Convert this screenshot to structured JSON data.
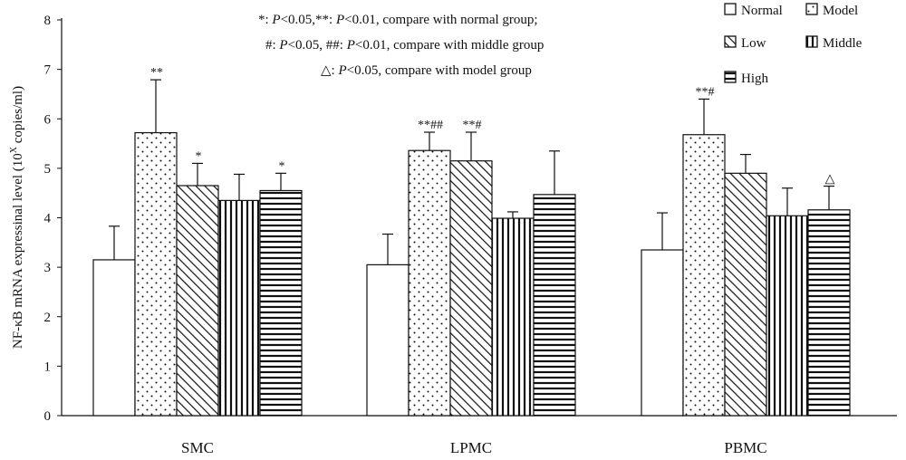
{
  "chart_data": {
    "type": "bar",
    "ylabel": "NF-κB mRNA expressinal level (10^X copies/ml)",
    "ylabel_parts": {
      "before": "NF-κB mRNA expressinal level (10",
      "sup": "X",
      "after": " copies/ml)"
    },
    "ylim": [
      0,
      8
    ],
    "yticks": [
      "0",
      "1",
      "2",
      "3",
      "4",
      "5",
      "6",
      "7",
      "8"
    ],
    "categories": [
      "SMC",
      "LPMC",
      "PBMC"
    ],
    "series": [
      {
        "name": "Normal",
        "pattern": "white",
        "values": [
          3.15,
          3.05,
          3.35
        ],
        "errors": [
          0.68,
          0.62,
          0.75
        ],
        "sig": [
          "",
          "",
          ""
        ]
      },
      {
        "name": "Model",
        "pattern": "dots",
        "values": [
          5.72,
          5.36,
          5.68
        ],
        "errors": [
          1.07,
          0.37,
          0.72
        ],
        "sig": [
          "**",
          "**##",
          "**#"
        ]
      },
      {
        "name": "Low",
        "pattern": "diagonal",
        "values": [
          4.65,
          5.15,
          4.9
        ],
        "errors": [
          0.45,
          0.58,
          0.38
        ],
        "sig": [
          "*",
          "**#",
          ""
        ]
      },
      {
        "name": "Middle",
        "pattern": "vertical",
        "values": [
          4.35,
          3.99,
          4.04
        ],
        "errors": [
          0.53,
          0.13,
          0.56
        ],
        "sig": [
          "",
          "",
          ""
        ]
      },
      {
        "name": "High",
        "pattern": "horizontal",
        "values": [
          4.55,
          4.47,
          4.16
        ],
        "errors": [
          0.35,
          0.88,
          0.48
        ],
        "sig": [
          "*",
          "",
          "△"
        ]
      }
    ],
    "annotations": [
      {
        "symbol": "*: ",
        "p1": "P",
        "t1": "<0.05,**: ",
        "p2": "P",
        "t2": "<0.01, compare with normal group;"
      },
      {
        "symbol": "#: ",
        "p1": "P",
        "t1": "<0.05, ##: ",
        "p2": "P",
        "t2": "<0.01, compare with middle group"
      },
      {
        "symbol": "△: ",
        "p1": "P",
        "t1": "<0.05, compare with model group",
        "p2": "",
        "t2": ""
      }
    ],
    "legend": [
      "Normal",
      "Model",
      "Low",
      "Middle",
      "High"
    ],
    "legend_position": "top-right",
    "grid": false,
    "colors": {
      "bar_stroke": "#111111",
      "fill": "#ffffff",
      "pattern": "#111111"
    }
  }
}
